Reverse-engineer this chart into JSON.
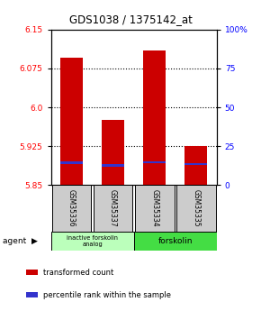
{
  "title": "GDS1038 / 1375142_at",
  "samples": [
    "GSM35336",
    "GSM35337",
    "GSM35334",
    "GSM35335"
  ],
  "bar_bottoms": [
    5.85,
    5.85,
    5.85,
    5.85
  ],
  "bar_tops": [
    6.095,
    5.975,
    6.11,
    5.925
  ],
  "percentile_values": [
    5.893,
    5.888,
    5.894,
    5.89
  ],
  "ylim_min": 5.85,
  "ylim_max": 6.15,
  "yticks_left": [
    5.85,
    5.925,
    6.0,
    6.075,
    6.15
  ],
  "yticks_right_vals": [
    5.85,
    5.925,
    6.0,
    6.075,
    6.15
  ],
  "yticks_right_labels": [
    "0",
    "25",
    "50",
    "75",
    "100%"
  ],
  "gridlines": [
    5.925,
    6.0,
    6.075
  ],
  "bar_color": "#cc0000",
  "percentile_color": "#3333cc",
  "agent_labels": [
    "inactive forskolin\nanalog",
    "forskolin"
  ],
  "agent_colors": [
    "#bbffbb",
    "#44dd44"
  ],
  "background_color": "#ffffff",
  "sample_box_color": "#cccccc",
  "legend_items": [
    {
      "color": "#cc0000",
      "label": "transformed count"
    },
    {
      "color": "#3333cc",
      "label": "percentile rank within the sample"
    }
  ]
}
